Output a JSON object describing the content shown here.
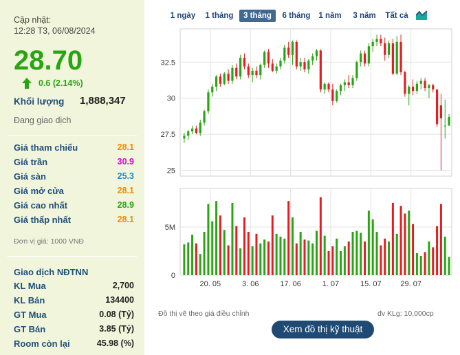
{
  "summary": {
    "updated_label": "Cập nhật:",
    "updated_time": "12:28 T3, 06/08/2024",
    "price": "28.70",
    "change": "0.6 (2.14%)",
    "volume_label": "Khối lượng",
    "volume": "1,888,347",
    "status": "Đang giao dịch"
  },
  "price_stats": [
    {
      "label": "Giá tham chiếu",
      "value": "28.1",
      "color": "#f08c00"
    },
    {
      "label": "Giá trần",
      "value": "30.9",
      "color": "#e000e0"
    },
    {
      "label": "Giá sàn",
      "value": "25.3",
      "color": "#1a8fd0"
    },
    {
      "label": "Giá mở cửa",
      "value": "28.1",
      "color": "#f08c00"
    },
    {
      "label": "Giá cao nhất",
      "value": "28.9",
      "color": "#2aa512"
    },
    {
      "label": "Giá thấp nhất",
      "value": "28.1",
      "color": "#f08c00"
    }
  ],
  "unit_note": "Đơn vị giá: 1000 VNĐ",
  "foreign": {
    "title": "Giao dịch NĐTNN",
    "rows": [
      {
        "label": "KL Mua",
        "value": "2,700"
      },
      {
        "label": "KL Bán",
        "value": "134400"
      },
      {
        "label": "GT Mua",
        "value": "0.08 (Tỷ)"
      },
      {
        "label": "GT Bán",
        "value": "3.85 (Tỷ)"
      },
      {
        "label": "Room còn lại",
        "value": "45.98 (%)"
      }
    ]
  },
  "colors": {
    "up": "#2aa512",
    "down": "#e02020",
    "panel_bg": "#f1f5dc",
    "active_tab": "#416890",
    "button": "#1f4a73"
  },
  "range_tabs": [
    "1 ngày",
    "1 tháng",
    "3 tháng",
    "6 tháng",
    "1 năm",
    "3 năm",
    "Tất cả"
  ],
  "active_tab": "3 tháng",
  "chart_icon": "area-chart-icon",
  "footer": {
    "left_note": "Đồ thị vẽ theo giá điều chỉnh",
    "right_note": "đv KLg: 10,000cp",
    "button": "Xem đồ thị kỹ thuật"
  },
  "chart_data": {
    "type": "candlestick",
    "y_ticks": [
      "32.5",
      "30",
      "27.5",
      "25"
    ],
    "y_tick_values": [
      32.5,
      30,
      27.5,
      25
    ],
    "ylim": [
      24.6,
      34.8
    ],
    "x_ticks": [
      "20. 05",
      "3. 06",
      "17. 06",
      "1. 07",
      "15. 07",
      "29. 07"
    ],
    "x_tick_index": [
      6.5,
      16.5,
      26.5,
      36.5,
      46.5,
      56.5
    ],
    "volume_ticks": [
      "5M",
      "0"
    ],
    "volume_tick_values": [
      5,
      0
    ],
    "volume_ylim": [
      0,
      9
    ],
    "candles": [
      {
        "o": 27.2,
        "h": 27.6,
        "l": 26.9,
        "c": 27.4,
        "v": 3.2
      },
      {
        "o": 27.4,
        "h": 27.8,
        "l": 27.1,
        "c": 27.7,
        "v": 3.4
      },
      {
        "o": 27.7,
        "h": 28.1,
        "l": 27.5,
        "c": 27.9,
        "v": 4.2
      },
      {
        "o": 27.9,
        "h": 28.1,
        "l": 27.5,
        "c": 27.6,
        "v": 3.3
      },
      {
        "o": 27.6,
        "h": 28.5,
        "l": 27.4,
        "c": 28.3,
        "v": 2.2
      },
      {
        "o": 28.3,
        "h": 29.2,
        "l": 28.1,
        "c": 29.1,
        "v": 4.5
      },
      {
        "o": 29.1,
        "h": 30.6,
        "l": 28.9,
        "c": 30.4,
        "v": 7.4
      },
      {
        "o": 30.4,
        "h": 31.0,
        "l": 30.1,
        "c": 30.8,
        "v": 5.6
      },
      {
        "o": 30.8,
        "h": 31.6,
        "l": 30.5,
        "c": 31.5,
        "v": 7.7
      },
      {
        "o": 31.5,
        "h": 31.7,
        "l": 30.8,
        "c": 31.0,
        "v": 6.2
      },
      {
        "o": 31.0,
        "h": 31.8,
        "l": 30.9,
        "c": 31.7,
        "v": 4.7
      },
      {
        "o": 31.7,
        "h": 32.0,
        "l": 31.0,
        "c": 31.2,
        "v": 3.1
      },
      {
        "o": 31.2,
        "h": 32.3,
        "l": 31.0,
        "c": 32.1,
        "v": 7.5
      },
      {
        "o": 32.1,
        "h": 32.4,
        "l": 31.3,
        "c": 31.5,
        "v": 5.1
      },
      {
        "o": 31.5,
        "h": 33.0,
        "l": 31.3,
        "c": 32.8,
        "v": 2.8
      },
      {
        "o": 32.8,
        "h": 33.1,
        "l": 32.0,
        "c": 32.2,
        "v": 6.0
      },
      {
        "o": 32.2,
        "h": 32.4,
        "l": 31.4,
        "c": 31.6,
        "v": 4.5
      },
      {
        "o": 31.6,
        "h": 32.1,
        "l": 31.1,
        "c": 31.9,
        "v": 3.0
      },
      {
        "o": 31.9,
        "h": 32.2,
        "l": 31.4,
        "c": 31.6,
        "v": 4.3
      },
      {
        "o": 31.6,
        "h": 32.4,
        "l": 31.3,
        "c": 32.3,
        "v": 3.3
      },
      {
        "o": 32.3,
        "h": 33.3,
        "l": 32.1,
        "c": 33.2,
        "v": 3.7
      },
      {
        "o": 33.2,
        "h": 33.4,
        "l": 32.1,
        "c": 32.4,
        "v": 3.5
      },
      {
        "o": 32.4,
        "h": 32.7,
        "l": 31.8,
        "c": 31.9,
        "v": 6.2
      },
      {
        "o": 31.9,
        "h": 32.4,
        "l": 31.7,
        "c": 32.2,
        "v": 4.3
      },
      {
        "o": 32.2,
        "h": 32.8,
        "l": 32.0,
        "c": 32.6,
        "v": 4.0
      },
      {
        "o": 32.6,
        "h": 33.7,
        "l": 32.4,
        "c": 33.5,
        "v": 3.8
      },
      {
        "o": 33.5,
        "h": 33.9,
        "l": 32.8,
        "c": 33.0,
        "v": 7.7
      },
      {
        "o": 33.0,
        "h": 34.0,
        "l": 32.3,
        "c": 33.9,
        "v": 6.0
      },
      {
        "o": 33.9,
        "h": 34.0,
        "l": 32.0,
        "c": 32.2,
        "v": 3.3
      },
      {
        "o": 32.2,
        "h": 32.8,
        "l": 31.9,
        "c": 32.5,
        "v": 4.5
      },
      {
        "o": 32.5,
        "h": 32.8,
        "l": 31.8,
        "c": 32.0,
        "v": 3.7
      },
      {
        "o": 32.0,
        "h": 32.7,
        "l": 31.7,
        "c": 32.6,
        "v": 3.6
      },
      {
        "o": 32.6,
        "h": 33.1,
        "l": 32.3,
        "c": 32.9,
        "v": 3.3
      },
      {
        "o": 32.9,
        "h": 33.4,
        "l": 32.6,
        "c": 33.3,
        "v": 4.6
      },
      {
        "o": 33.3,
        "h": 33.4,
        "l": 30.4,
        "c": 30.6,
        "v": 8.1
      },
      {
        "o": 30.6,
        "h": 31.1,
        "l": 30.3,
        "c": 31.0,
        "v": 4.1
      },
      {
        "o": 31.0,
        "h": 31.1,
        "l": 30.4,
        "c": 30.6,
        "v": 2.5
      },
      {
        "o": 30.6,
        "h": 31.0,
        "l": 29.5,
        "c": 29.8,
        "v": 3.0
      },
      {
        "o": 29.8,
        "h": 30.6,
        "l": 29.7,
        "c": 30.5,
        "v": 3.8
      },
      {
        "o": 30.5,
        "h": 31.0,
        "l": 30.2,
        "c": 30.9,
        "v": 2.5
      },
      {
        "o": 30.9,
        "h": 31.3,
        "l": 30.5,
        "c": 31.1,
        "v": 3.0
      },
      {
        "o": 31.1,
        "h": 31.6,
        "l": 30.7,
        "c": 30.9,
        "v": 3.5
      },
      {
        "o": 30.9,
        "h": 31.6,
        "l": 30.7,
        "c": 31.4,
        "v": 4.5
      },
      {
        "o": 31.4,
        "h": 32.6,
        "l": 31.2,
        "c": 32.5,
        "v": 4.6
      },
      {
        "o": 32.5,
        "h": 33.3,
        "l": 32.2,
        "c": 33.1,
        "v": 4.4
      },
      {
        "o": 33.1,
        "h": 33.3,
        "l": 32.2,
        "c": 32.4,
        "v": 3.5
      },
      {
        "o": 32.4,
        "h": 33.8,
        "l": 32.2,
        "c": 33.6,
        "v": 6.7
      },
      {
        "o": 33.6,
        "h": 34.1,
        "l": 33.2,
        "c": 33.9,
        "v": 5.8
      },
      {
        "o": 33.9,
        "h": 34.4,
        "l": 33.6,
        "c": 34.1,
        "v": 4.5
      },
      {
        "o": 34.1,
        "h": 34.4,
        "l": 33.6,
        "c": 33.8,
        "v": 3.1
      },
      {
        "o": 33.8,
        "h": 34.2,
        "l": 32.6,
        "c": 33.0,
        "v": 3.8
      },
      {
        "o": 33.0,
        "h": 34.0,
        "l": 32.8,
        "c": 33.8,
        "v": 3.5
      },
      {
        "o": 33.8,
        "h": 34.1,
        "l": 31.6,
        "c": 31.7,
        "v": 7.5
      },
      {
        "o": 31.7,
        "h": 34.3,
        "l": 31.6,
        "c": 33.9,
        "v": 4.3
      },
      {
        "o": 33.9,
        "h": 34.4,
        "l": 31.6,
        "c": 31.8,
        "v": 7.2
      },
      {
        "o": 31.8,
        "h": 31.9,
        "l": 30.1,
        "c": 30.3,
        "v": 6.4
      },
      {
        "o": 30.3,
        "h": 30.9,
        "l": 29.5,
        "c": 30.8,
        "v": 6.7
      },
      {
        "o": 30.8,
        "h": 31.3,
        "l": 30.2,
        "c": 30.5,
        "v": 5.3
      },
      {
        "o": 30.5,
        "h": 31.2,
        "l": 30.3,
        "c": 31.0,
        "v": 2.3
      },
      {
        "o": 31.0,
        "h": 31.4,
        "l": 30.6,
        "c": 31.2,
        "v": 2.0
      },
      {
        "o": 31.2,
        "h": 31.4,
        "l": 30.5,
        "c": 30.7,
        "v": 2.4
      },
      {
        "o": 30.7,
        "h": 31.0,
        "l": 30.0,
        "c": 30.9,
        "v": 3.5
      },
      {
        "o": 30.9,
        "h": 31.0,
        "l": 30.4,
        "c": 30.6,
        "v": 2.9
      },
      {
        "o": 30.6,
        "h": 30.6,
        "l": 28.0,
        "c": 28.2,
        "v": 5.1
      },
      {
        "o": 29.5,
        "h": 30.3,
        "l": 25.0,
        "c": 28.6,
        "v": 7.4
      },
      {
        "o": 28.1,
        "h": 29.9,
        "l": 27.2,
        "c": 28.1,
        "v": 4.0
      },
      {
        "o": 28.1,
        "h": 28.9,
        "l": 28.1,
        "c": 28.7,
        "v": 1.9
      }
    ]
  }
}
